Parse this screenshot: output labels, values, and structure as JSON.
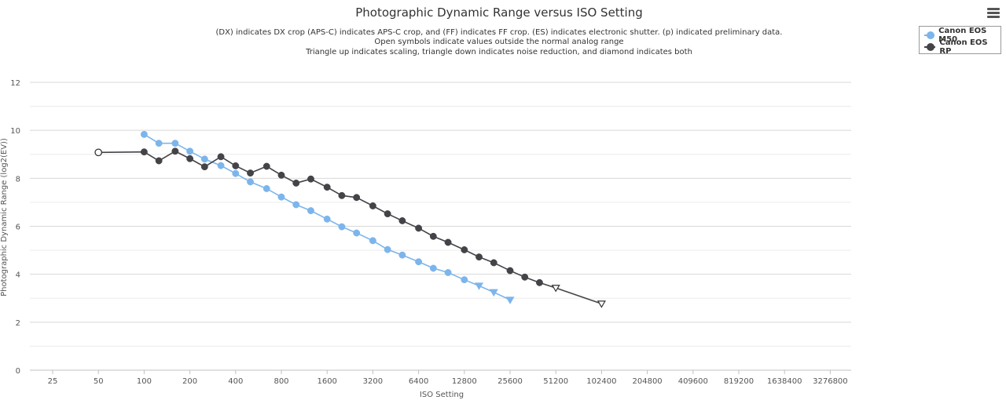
{
  "menu": {
    "icon": "hamburger-menu-icon"
  },
  "chart_data": {
    "type": "line",
    "title": "Photographic Dynamic Range versus ISO Setting",
    "subtitle": [
      "(DX) indicates DX crop (APS-C) indicates APS-C crop, and (FF) indicates FF crop. (ES) indicates electronic shutter. (p) indicated preliminary data.",
      "Open symbols indicate values outside the normal analog range",
      "Triangle up indicates scaling, triangle down indicates noise reduction, and diamond indicates both"
    ],
    "xlabel": "ISO Setting",
    "ylabel": "Photographic Dynamic Range (log2(EV))",
    "x_scale": "log2",
    "x_ticks": [
      "25",
      "50",
      "100",
      "200",
      "400",
      "800",
      "1600",
      "3200",
      "6400",
      "12800",
      "25600",
      "51200",
      "102400",
      "204800",
      "409600",
      "819200",
      "1638400",
      "3276800"
    ],
    "y_ticks": [
      "0",
      "2",
      "4",
      "6",
      "8",
      "10",
      "12"
    ],
    "ylim": [
      0,
      12
    ],
    "grid": true,
    "legend_position": "top-right",
    "series": [
      {
        "name": "Canon EOS M50",
        "color": "#7cb5ec",
        "points": [
          {
            "iso": 100,
            "dr": 9.83,
            "marker": "circle"
          },
          {
            "iso": 125,
            "dr": 9.46,
            "marker": "circle"
          },
          {
            "iso": 160,
            "dr": 9.46,
            "marker": "circle"
          },
          {
            "iso": 200,
            "dr": 9.13,
            "marker": "circle"
          },
          {
            "iso": 250,
            "dr": 8.8,
            "marker": "circle"
          },
          {
            "iso": 320,
            "dr": 8.53,
            "marker": "circle"
          },
          {
            "iso": 400,
            "dr": 8.2,
            "marker": "circle"
          },
          {
            "iso": 500,
            "dr": 7.85,
            "marker": "circle"
          },
          {
            "iso": 640,
            "dr": 7.57,
            "marker": "circle"
          },
          {
            "iso": 800,
            "dr": 7.22,
            "marker": "circle"
          },
          {
            "iso": 1000,
            "dr": 6.9,
            "marker": "circle"
          },
          {
            "iso": 1250,
            "dr": 6.65,
            "marker": "circle"
          },
          {
            "iso": 1600,
            "dr": 6.3,
            "marker": "circle"
          },
          {
            "iso": 2000,
            "dr": 5.98,
            "marker": "circle"
          },
          {
            "iso": 2500,
            "dr": 5.72,
            "marker": "circle"
          },
          {
            "iso": 3200,
            "dr": 5.4,
            "marker": "circle"
          },
          {
            "iso": 4000,
            "dr": 5.03,
            "marker": "circle"
          },
          {
            "iso": 5000,
            "dr": 4.8,
            "marker": "circle"
          },
          {
            "iso": 6400,
            "dr": 4.52,
            "marker": "circle"
          },
          {
            "iso": 8000,
            "dr": 4.25,
            "marker": "circle"
          },
          {
            "iso": 10000,
            "dr": 4.07,
            "marker": "circle"
          },
          {
            "iso": 12800,
            "dr": 3.77,
            "marker": "circle"
          },
          {
            "iso": 16000,
            "dr": 3.52,
            "marker": "triangle-down"
          },
          {
            "iso": 20000,
            "dr": 3.25,
            "marker": "triangle-down"
          },
          {
            "iso": 25600,
            "dr": 2.93,
            "marker": "triangle-down"
          }
        ]
      },
      {
        "name": "Canon EOS RP",
        "color": "#434348",
        "points": [
          {
            "iso": 50,
            "dr": 9.08,
            "marker": "circle-open"
          },
          {
            "iso": 100,
            "dr": 9.1,
            "marker": "circle"
          },
          {
            "iso": 125,
            "dr": 8.73,
            "marker": "circle"
          },
          {
            "iso": 160,
            "dr": 9.13,
            "marker": "circle"
          },
          {
            "iso": 200,
            "dr": 8.82,
            "marker": "circle"
          },
          {
            "iso": 250,
            "dr": 8.48,
            "marker": "circle"
          },
          {
            "iso": 320,
            "dr": 8.9,
            "marker": "circle"
          },
          {
            "iso": 400,
            "dr": 8.52,
            "marker": "circle"
          },
          {
            "iso": 500,
            "dr": 8.22,
            "marker": "circle"
          },
          {
            "iso": 640,
            "dr": 8.5,
            "marker": "circle"
          },
          {
            "iso": 800,
            "dr": 8.13,
            "marker": "circle"
          },
          {
            "iso": 1000,
            "dr": 7.8,
            "marker": "circle"
          },
          {
            "iso": 1250,
            "dr": 7.97,
            "marker": "circle"
          },
          {
            "iso": 1600,
            "dr": 7.63,
            "marker": "circle"
          },
          {
            "iso": 2000,
            "dr": 7.28,
            "marker": "circle"
          },
          {
            "iso": 2500,
            "dr": 7.2,
            "marker": "circle"
          },
          {
            "iso": 3200,
            "dr": 6.85,
            "marker": "circle"
          },
          {
            "iso": 4000,
            "dr": 6.52,
            "marker": "circle"
          },
          {
            "iso": 5000,
            "dr": 6.23,
            "marker": "circle"
          },
          {
            "iso": 6400,
            "dr": 5.92,
            "marker": "circle"
          },
          {
            "iso": 8000,
            "dr": 5.58,
            "marker": "circle"
          },
          {
            "iso": 10000,
            "dr": 5.33,
            "marker": "circle"
          },
          {
            "iso": 12800,
            "dr": 5.02,
            "marker": "circle"
          },
          {
            "iso": 16000,
            "dr": 4.72,
            "marker": "circle"
          },
          {
            "iso": 20000,
            "dr": 4.48,
            "marker": "circle"
          },
          {
            "iso": 25600,
            "dr": 4.15,
            "marker": "circle"
          },
          {
            "iso": 32000,
            "dr": 3.88,
            "marker": "circle"
          },
          {
            "iso": 40000,
            "dr": 3.65,
            "marker": "circle"
          },
          {
            "iso": 51200,
            "dr": 3.43,
            "marker": "triangle-down-open"
          },
          {
            "iso": 102400,
            "dr": 2.77,
            "marker": "triangle-down-open"
          }
        ]
      }
    ]
  }
}
